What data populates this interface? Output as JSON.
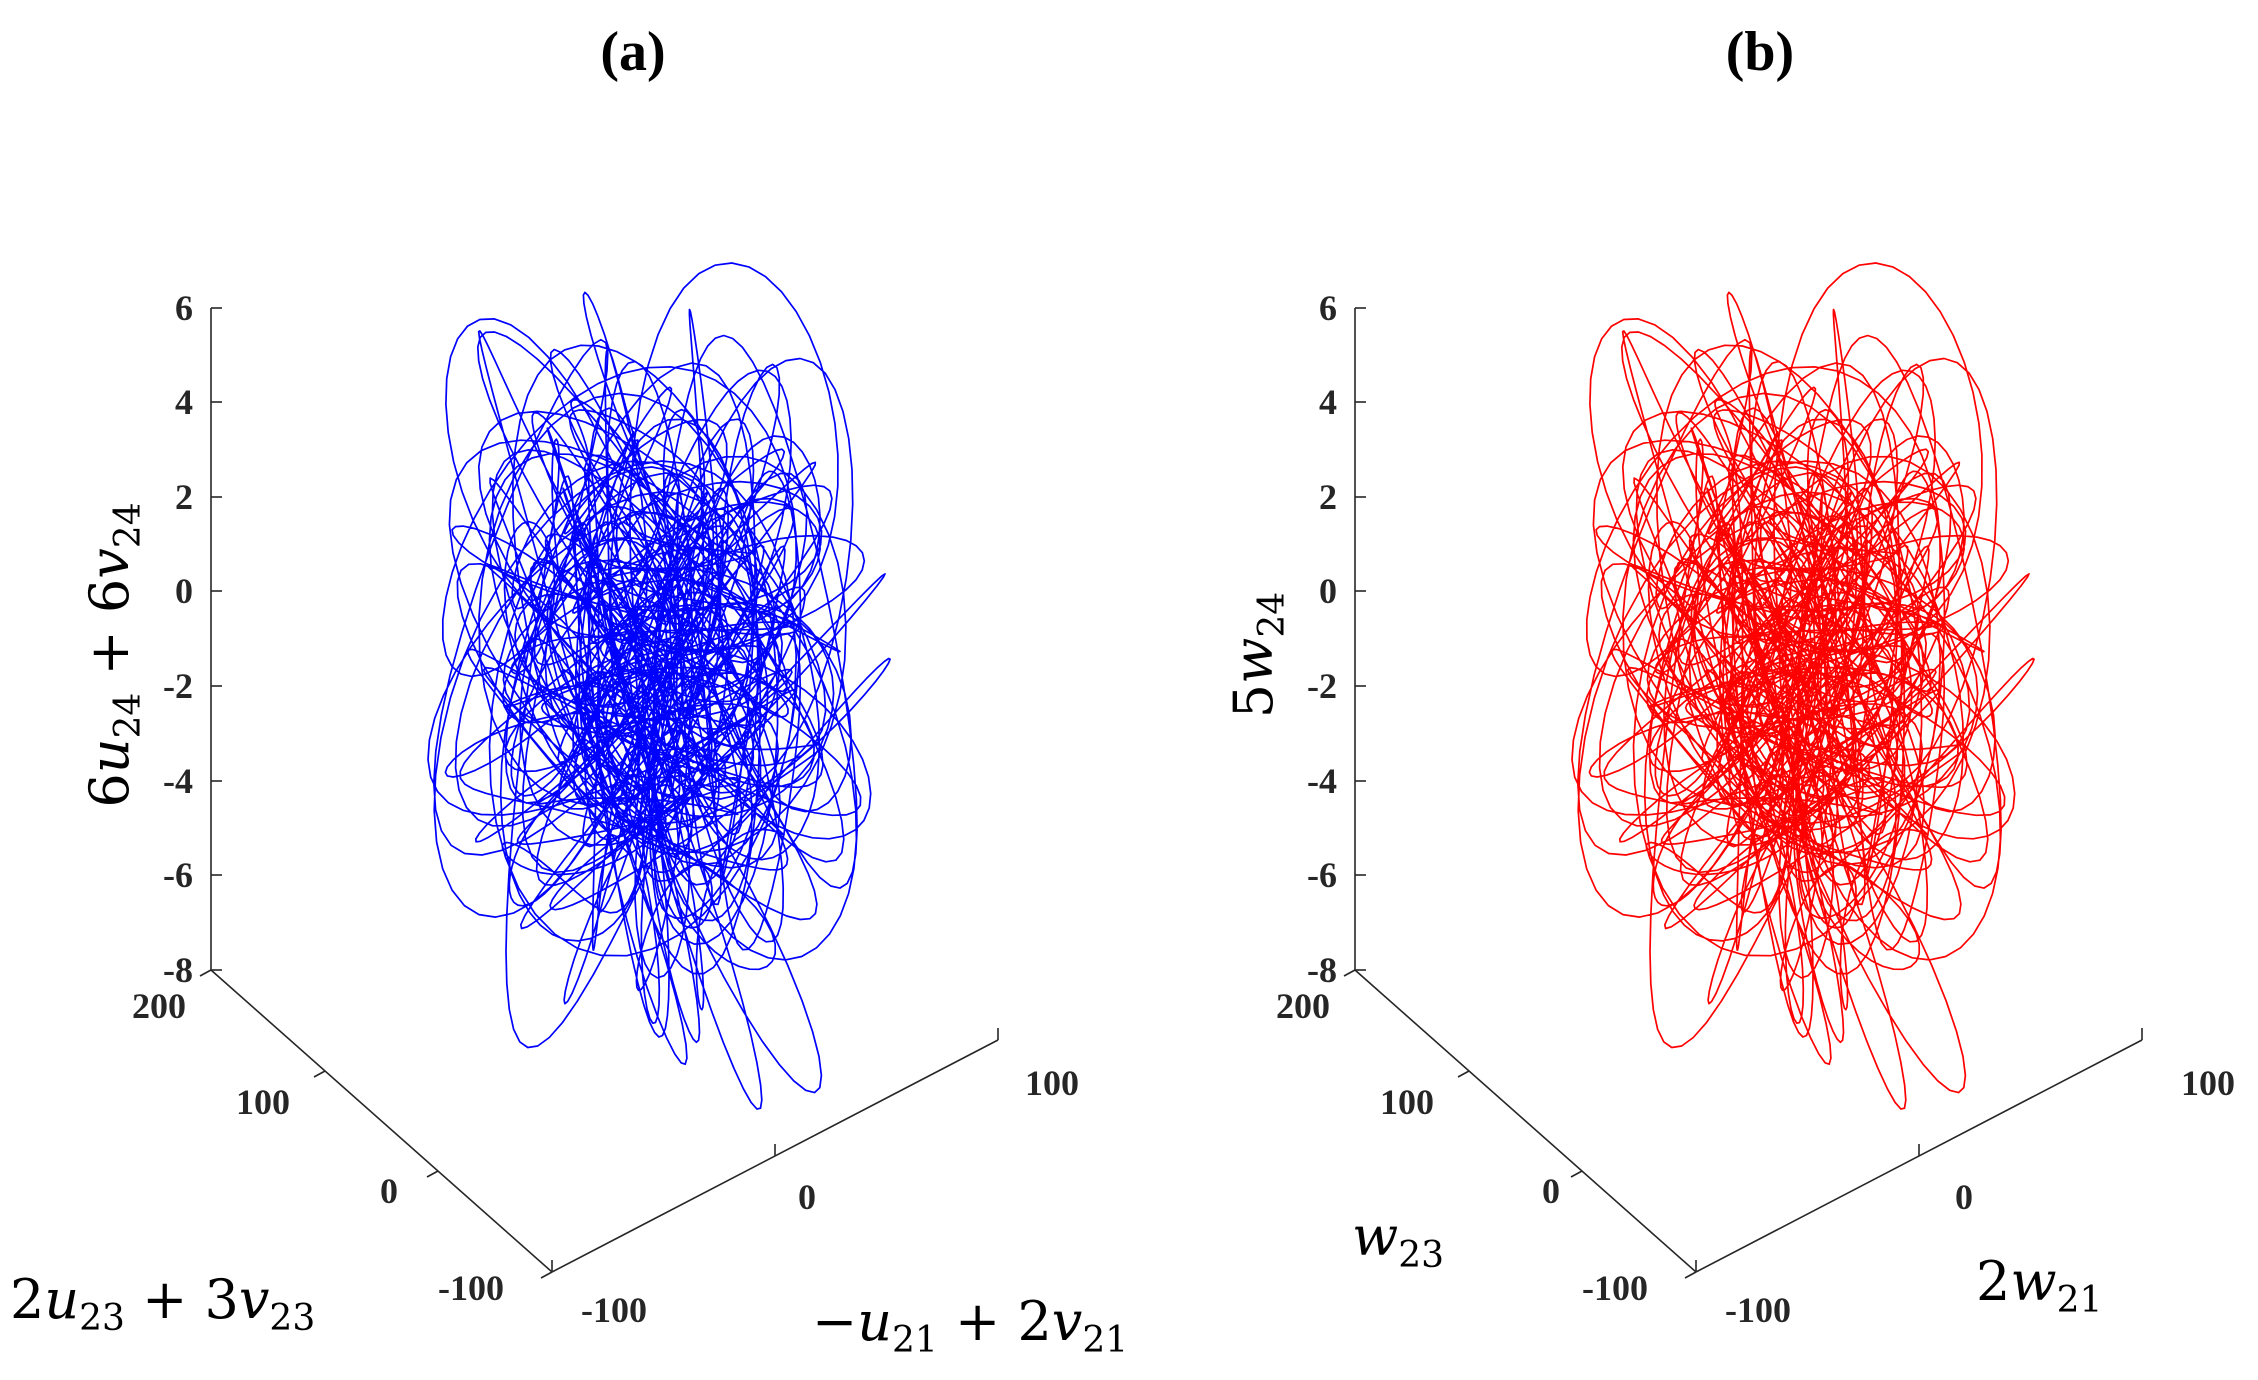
{
  "figure": {
    "panels": [
      {
        "id": "a",
        "title": "(a)",
        "color": "#0000ff",
        "zlabel": {
          "coef1": "6",
          "var1": "u",
          "sub1": "24",
          "op": "+",
          "coef2": "6",
          "var2": "v",
          "sub2": "24"
        },
        "ylabel": {
          "coef1": "2",
          "var1": "u",
          "sub1": "23",
          "op": "+",
          "coef2": "3",
          "var2": "v",
          "sub2": "23"
        },
        "xlabel": {
          "neg": "−",
          "var1": "u",
          "sub1": "21",
          "op": "+",
          "coef2": "2",
          "var2": "v",
          "sub2": "21"
        }
      },
      {
        "id": "b",
        "title": "(b)",
        "color": "#ff0000",
        "zlabel": {
          "coef1": "5",
          "var1": "w",
          "sub1": "24"
        },
        "ylabel": {
          "var1": "w",
          "sub1": "23"
        },
        "xlabel": {
          "coef1": "2",
          "var1": "w",
          "sub1": "21"
        }
      }
    ]
  },
  "chart_data": [
    {
      "type": "line3d",
      "title": "(a)",
      "color": "#0000ff",
      "xlabel": "−u_21 + 2v_21",
      "ylabel": "2u_23 + 3v_23",
      "zlabel": "6u_24 + 6v_24",
      "xlim": [
        -100,
        100
      ],
      "ylim": [
        -100,
        200
      ],
      "zlim": [
        -8,
        6
      ],
      "xticks": [
        "-100",
        "0",
        "100"
      ],
      "yticks": [
        "-100",
        "0",
        "100",
        "200"
      ],
      "zticks": [
        "-8",
        "-6",
        "-4",
        "-2",
        "0",
        "2",
        "4",
        "6"
      ],
      "xtick_values": [
        -100,
        0,
        100
      ],
      "ytick_values": [
        -100,
        0,
        100,
        200
      ],
      "ztick_values": [
        -8,
        -6,
        -4,
        -2,
        0,
        2,
        4,
        6
      ],
      "description": "chaotic trajectory",
      "trajectory": {
        "x_range": [
          -100,
          100
        ],
        "y_range": [
          -100,
          200
        ],
        "z_range": [
          -7.4,
          5.8
        ],
        "samples": 5200,
        "seed": 7
      }
    },
    {
      "type": "line3d",
      "title": "(b)",
      "color": "#ff0000",
      "xlabel": "2w_21",
      "ylabel": "w_23",
      "zlabel": "5w_24",
      "xlim": [
        -100,
        100
      ],
      "ylim": [
        -100,
        200
      ],
      "zlim": [
        -8,
        6
      ],
      "xticks": [
        "-100",
        "0",
        "100"
      ],
      "yticks": [
        "-100",
        "0",
        "100",
        "200"
      ],
      "zticks": [
        "-8",
        "-6",
        "-4",
        "-2",
        "0",
        "2",
        "4",
        "6"
      ],
      "xtick_values": [
        -100,
        0,
        100
      ],
      "ytick_values": [
        -100,
        0,
        100,
        200
      ],
      "ztick_values": [
        -8,
        -6,
        -4,
        -2,
        0,
        2,
        4,
        6
      ],
      "description": "chaotic trajectory",
      "trajectory": {
        "x_range": [
          -100,
          100
        ],
        "y_range": [
          -100,
          200
        ],
        "z_range": [
          -7.4,
          5.8
        ],
        "samples": 5200,
        "seed": 7
      }
    }
  ]
}
